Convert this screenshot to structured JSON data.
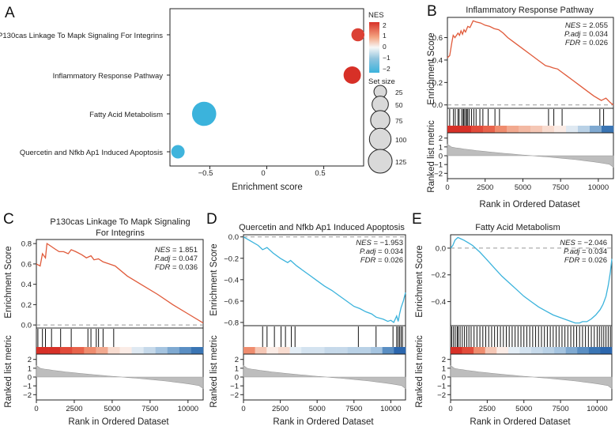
{
  "panels": {
    "A": {
      "letter": "A",
      "chart_data": {
        "type": "scatter",
        "title": "",
        "xlabel": "Enrichment score",
        "ylabel": "",
        "xlim": [
          -0.85,
          0.85
        ],
        "xticks": [
          -0.5,
          0,
          0.5
        ],
        "xtick_labels": [
          "−0.5",
          "0",
          "0.5"
        ],
        "categories": [
          "P130cas Linkage To Mapk Signaling For Integrins",
          "Inflammatory Response Pathway",
          "Fatty Acid Metabolism",
          "Quercetin and Nfkb Ap1 Induced Apoptosis"
        ],
        "x": [
          0.8,
          0.75,
          -0.55,
          -0.78
        ],
        "nes": [
          1.851,
          2.055,
          -2.046,
          -1.953
        ],
        "set_size": [
          28,
          58,
          130,
          30
        ],
        "legend_nes_title": "NES",
        "legend_nes_ticks": [
          "2",
          "1",
          "0",
          "−1",
          "−2"
        ],
        "legend_nes_values": [
          2,
          1,
          0,
          -1,
          -2
        ],
        "legend_size_title": "Set size",
        "legend_size_ticks": [
          "25",
          "50",
          "75",
          "100",
          "125"
        ],
        "legend_size_values": [
          25,
          50,
          75,
          100,
          125
        ]
      }
    },
    "B": {
      "letter": "B",
      "chart_data": {
        "type": "line",
        "title": "Inflammatory Response Pathway",
        "xlabel": "Rank in Ordered Dataset",
        "ylabel": "Enrichment Score",
        "ylabel2": "Ranked list metric",
        "xlim": [
          0,
          11000
        ],
        "ylim": [
          -0.03,
          0.78
        ],
        "yticks": [
          0.0,
          0.2,
          0.4,
          0.6
        ],
        "ytick_labels": [
          "0.0",
          "0.2",
          "0.4",
          "0.6"
        ],
        "xticks": [
          0,
          2500,
          5000,
          7500,
          10000
        ],
        "xtick_labels": [
          "0",
          "2500",
          "5000",
          "7500",
          "10000"
        ],
        "metric_ticks": [
          2,
          1,
          0,
          -1,
          -2
        ],
        "metric_tick_labels": [
          "2",
          "1",
          "0",
          "−1",
          "−2"
        ],
        "curve_color": "#e05a3a",
        "curve_x": [
          0,
          150,
          300,
          380,
          500,
          700,
          800,
          900,
          1000,
          1100,
          1200,
          1350,
          1500,
          1700,
          1900,
          2200,
          2500,
          2800,
          3100,
          3400,
          3700,
          4000,
          4500,
          5000,
          5500,
          6000,
          6500,
          6800,
          7000,
          7300,
          7600,
          7900,
          8300,
          8700,
          9200,
          9700,
          10200,
          10500,
          10800,
          11000
        ],
        "curve_y": [
          0.42,
          0.44,
          0.56,
          0.62,
          0.6,
          0.64,
          0.62,
          0.66,
          0.63,
          0.67,
          0.65,
          0.7,
          0.69,
          0.75,
          0.74,
          0.73,
          0.71,
          0.7,
          0.68,
          0.67,
          0.64,
          0.6,
          0.55,
          0.5,
          0.45,
          0.4,
          0.35,
          0.34,
          0.33,
          0.32,
          0.29,
          0.26,
          0.22,
          0.18,
          0.13,
          0.08,
          0.04,
          0.06,
          0.02,
          0.0
        ],
        "hits": [
          150,
          400,
          520,
          700,
          780,
          950,
          1050,
          1100,
          1200,
          1280,
          1350,
          1450,
          1600,
          1750,
          1900,
          2150,
          2350,
          2700,
          3150,
          3450,
          6700,
          7050,
          7600,
          10100,
          10350
        ],
        "heatmap": [
          "#d73027",
          "#d73027",
          "#e24b3a",
          "#e8634b",
          "#ef8c6e",
          "#f2a98f",
          "#f3b9a3",
          "#f5c7b5",
          "#f8dcd0",
          "#fbece6",
          "#dfe9f2",
          "#b9d1e6",
          "#7fa9d1",
          "#3a75b4"
        ],
        "stats": [
          {
            "name": "NES",
            "value": "2.055"
          },
          {
            "name": "P.adj",
            "value": "0.034"
          },
          {
            "name": "FDR",
            "value": "0.026"
          }
        ]
      }
    },
    "C": {
      "letter": "C",
      "chart_data": {
        "type": "line",
        "title_lines": [
          "P130cas Linkage To Mapk Signaling",
          "For Integrins"
        ],
        "xlabel": "Rank in Ordered Dataset",
        "ylabel": "Enrichment Score",
        "ylabel2": "Ranked list metric",
        "xlim": [
          0,
          11000
        ],
        "ylim": [
          -0.03,
          0.84
        ],
        "yticks": [
          0.0,
          0.2,
          0.4,
          0.6,
          0.8
        ],
        "ytick_labels": [
          "0.0",
          "0.2",
          "0.4",
          "0.6",
          "0.8"
        ],
        "xticks": [
          0,
          2500,
          5000,
          7500,
          10000
        ],
        "xtick_labels": [
          "0",
          "2500",
          "5000",
          "7500",
          "10000"
        ],
        "metric_ticks": [
          2,
          1,
          0,
          -1,
          -2
        ],
        "metric_tick_labels": [
          "2",
          "1",
          "0",
          "−1",
          "−2"
        ],
        "curve_color": "#e05a3a",
        "curve_x": [
          0,
          250,
          400,
          600,
          700,
          1000,
          1200,
          1500,
          1800,
          2100,
          2300,
          2600,
          3000,
          3300,
          3600,
          3800,
          4100,
          4400,
          4800,
          5200,
          6000,
          7000,
          8000,
          9000,
          10000,
          11000
        ],
        "curve_y": [
          0.6,
          0.58,
          0.7,
          0.66,
          0.8,
          0.77,
          0.75,
          0.72,
          0.72,
          0.7,
          0.74,
          0.72,
          0.69,
          0.66,
          0.68,
          0.64,
          0.65,
          0.62,
          0.6,
          0.58,
          0.48,
          0.39,
          0.3,
          0.2,
          0.11,
          0.02
        ],
        "hits": [
          100,
          400,
          600,
          1000,
          1600,
          2300,
          3400,
          3600,
          3950,
          4100,
          4400,
          5100
        ],
        "heatmap": [
          "#d73027",
          "#d73027",
          "#e24b3a",
          "#e8634b",
          "#ef8c6e",
          "#f2a98f",
          "#f8dcd0",
          "#fbece6",
          "#dfe9f2",
          "#c6d9ea",
          "#a5c4e0",
          "#7fa9d1",
          "#5a8ec3",
          "#3a75b4"
        ],
        "stats": [
          {
            "name": "NES",
            "value": "1.851"
          },
          {
            "name": "P.adj",
            "value": "0.047"
          },
          {
            "name": "FDR",
            "value": "0.036"
          }
        ]
      }
    },
    "D": {
      "letter": "D",
      "chart_data": {
        "type": "line",
        "title": "Quercetin and Nfkb Ap1 Induced Apoptosis",
        "xlabel": "Rank in Ordered Dataset",
        "ylabel": "Enrichment Score",
        "ylabel2": "Ranked list metric",
        "xlim": [
          0,
          11000
        ],
        "ylim": [
          -0.83,
          0.02
        ],
        "yticks": [
          0.0,
          -0.2,
          -0.4,
          -0.6,
          -0.8
        ],
        "ytick_labels": [
          "0.0",
          "−0.2",
          "−0.4",
          "−0.6",
          "−0.8"
        ],
        "xticks": [
          0,
          2500,
          5000,
          7500,
          10000
        ],
        "xtick_labels": [
          "0",
          "2500",
          "5000",
          "7500",
          "10000"
        ],
        "metric_ticks": [
          2,
          1,
          0,
          -1,
          -2
        ],
        "metric_tick_labels": [
          "2",
          "1",
          "0",
          "−1",
          "−2"
        ],
        "curve_color": "#3bb3dc",
        "curve_x": [
          0,
          500,
          1000,
          1300,
          1600,
          2000,
          2500,
          3000,
          3200,
          3600,
          4000,
          4500,
          5000,
          5500,
          6000,
          6500,
          7000,
          7500,
          7900,
          8300,
          8700,
          9000,
          9500,
          9800,
          10000,
          10200,
          10400,
          10500,
          10600,
          10700,
          10850,
          11000
        ],
        "curve_y": [
          0.0,
          -0.04,
          -0.08,
          -0.12,
          -0.1,
          -0.15,
          -0.2,
          -0.24,
          -0.22,
          -0.27,
          -0.31,
          -0.36,
          -0.41,
          -0.46,
          -0.5,
          -0.55,
          -0.6,
          -0.65,
          -0.67,
          -0.7,
          -0.72,
          -0.75,
          -0.77,
          -0.79,
          -0.78,
          -0.8,
          -0.74,
          -0.79,
          -0.72,
          -0.66,
          -0.6,
          -0.52
        ],
        "hits": [
          1300,
          1600,
          2100,
          2550,
          2850,
          3250,
          3500,
          7800,
          9000,
          10150,
          10400,
          10500,
          10600,
          10700,
          10800
        ],
        "heatmap": [
          "#ef8c6e",
          "#f5c7b5",
          "#fbece6",
          "#f8dcd0",
          "#e4eef6",
          "#d4e3f0",
          "#d4e3f0",
          "#c6d9ea",
          "#c6d9ea",
          "#b9d1e6",
          "#b9d1e6",
          "#a5c4e0",
          "#5a8ec3",
          "#2b66ad"
        ],
        "stats": [
          {
            "name": "NES",
            "value": "−1.953"
          },
          {
            "name": "P.adj",
            "value": "0.034"
          },
          {
            "name": "FDR",
            "value": "0.026"
          }
        ]
      }
    },
    "E": {
      "letter": "E",
      "chart_data": {
        "type": "line",
        "title": "Fatty Acid Metabolism",
        "xlabel": "Rank in Ordered Dataset",
        "ylabel": "Enrichment Score",
        "ylabel2": "Ranked list metric",
        "xlim": [
          0,
          11000
        ],
        "ylim": [
          -0.58,
          0.1
        ],
        "yticks": [
          0.0,
          -0.2,
          -0.4
        ],
        "ytick_labels": [
          "0.0",
          "−0.2",
          "−0.4"
        ],
        "xticks": [
          0,
          2500,
          5000,
          7500,
          10000
        ],
        "xtick_labels": [
          "0",
          "2500",
          "5000",
          "7500",
          "10000"
        ],
        "metric_ticks": [
          2,
          1,
          0,
          -1,
          -2
        ],
        "metric_tick_labels": [
          "2",
          "1",
          "0",
          "−1",
          "−2"
        ],
        "curve_color": "#3bb3dc",
        "curve_x": [
          0,
          150,
          300,
          500,
          700,
          900,
          1200,
          1500,
          2000,
          2500,
          3000,
          3500,
          4000,
          4500,
          5000,
          5500,
          6000,
          6500,
          7000,
          7500,
          8000,
          8500,
          8800,
          9000,
          9300,
          9600,
          9900,
          10200,
          10400,
          10600,
          10750,
          10900,
          11000
        ],
        "curve_y": [
          0.0,
          0.02,
          0.06,
          0.08,
          0.07,
          0.06,
          0.04,
          0.02,
          -0.03,
          -0.09,
          -0.15,
          -0.21,
          -0.26,
          -0.31,
          -0.36,
          -0.4,
          -0.44,
          -0.47,
          -0.5,
          -0.52,
          -0.54,
          -0.56,
          -0.56,
          -0.55,
          -0.55,
          -0.53,
          -0.5,
          -0.46,
          -0.42,
          -0.36,
          -0.28,
          -0.18,
          -0.08
        ],
        "hits": [
          80,
          200,
          320,
          450,
          520,
          650,
          800,
          950,
          1100,
          1250,
          1400,
          1600,
          1800,
          2000,
          2200,
          2400,
          2600,
          2800,
          3000,
          3200,
          3400,
          3600,
          3800,
          4000,
          4200,
          4400,
          4600,
          4800,
          5000,
          5200,
          5400,
          5600,
          5800,
          6000,
          6200,
          6400,
          6600,
          6800,
          7000,
          7200,
          7400,
          7600,
          7800,
          8000,
          8200,
          8400,
          8600,
          8800,
          9000,
          9200,
          9400,
          9600,
          9800,
          10000,
          10150,
          10300,
          10450,
          10600,
          10750,
          10900
        ],
        "heatmap": [
          "#d73027",
          "#e24b3a",
          "#ef8c6e",
          "#f5c7b5",
          "#fbece6",
          "#e4eef6",
          "#d4e3f0",
          "#c6d9ea",
          "#b9d1e6",
          "#a5c4e0",
          "#7fa9d1",
          "#5a8ec3",
          "#3a75b4",
          "#2b66ad"
        ],
        "stats": [
          {
            "name": "NES",
            "value": "−2.046"
          },
          {
            "name": "P.adj",
            "value": "0.034"
          },
          {
            "name": "FDR",
            "value": "0.026"
          }
        ]
      }
    }
  }
}
